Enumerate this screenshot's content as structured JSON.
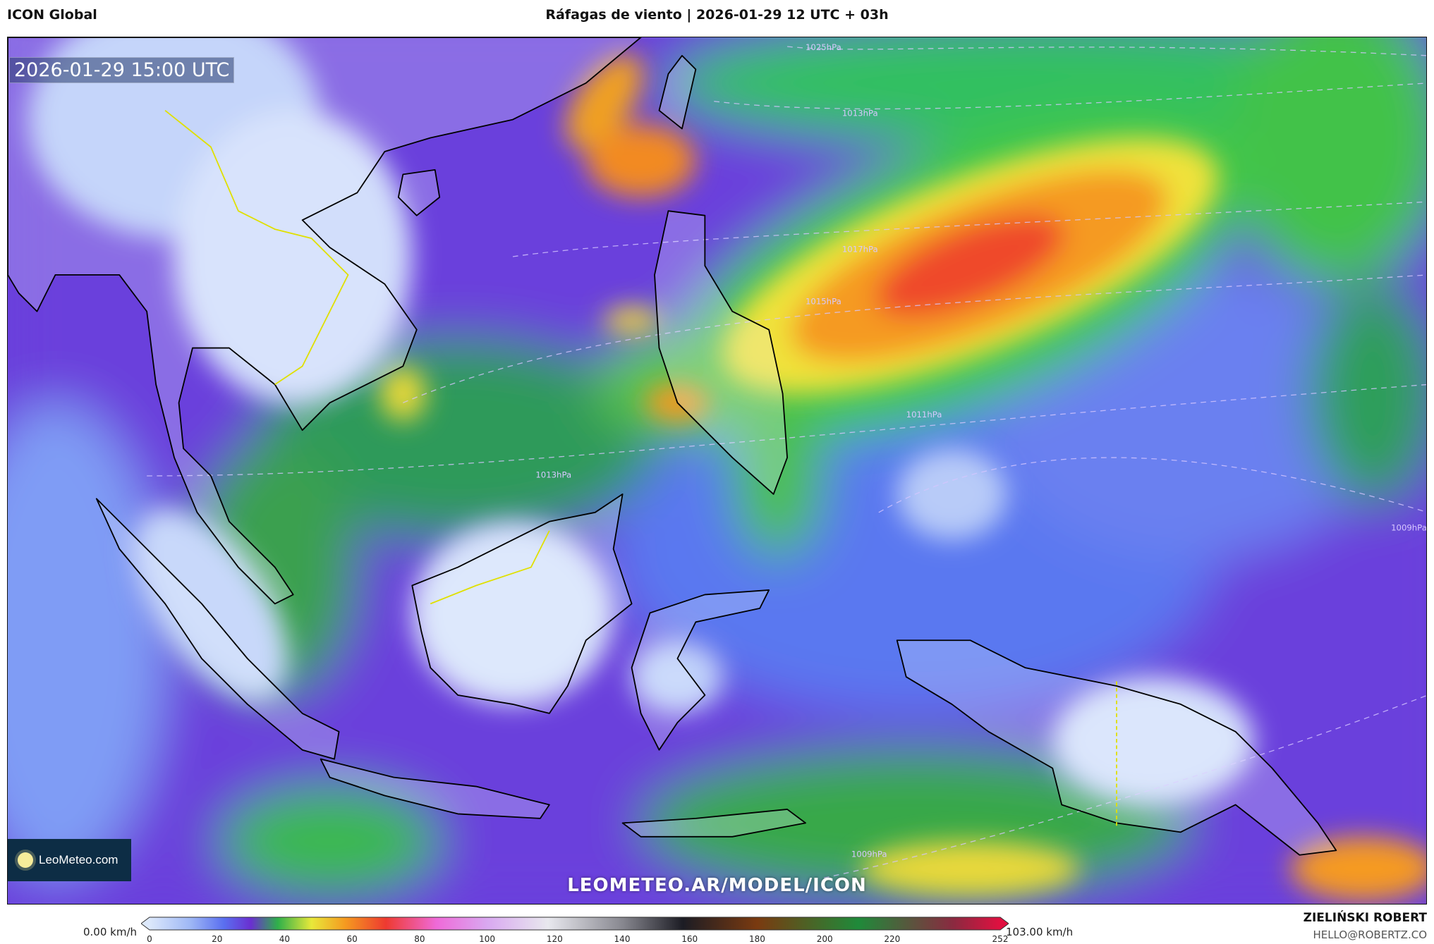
{
  "header": {
    "model": "ICON Global",
    "title": "Ráfagas de viento | 2026-01-29 12 UTC + 03h"
  },
  "map": {
    "valid_time": "2026-01-29 15:00 UTC",
    "watermark": "LEOMETEO.AR/MODEL/ICON",
    "logo_text": "LeoMeteo.com",
    "isobar_labels": [
      "1025hPa",
      "1013hPa",
      "1017hPa",
      "1015hPa",
      "1013hPa",
      "1011hPa",
      "1009hPa",
      "1009hPa"
    ]
  },
  "colorbar": {
    "min_label": "0.00 km/h",
    "max_label": "103.00 km/h",
    "unit": "km/h",
    "ticks": [
      0,
      20,
      40,
      60,
      80,
      100,
      120,
      140,
      160,
      180,
      200,
      220,
      252
    ],
    "range": [
      0,
      252
    ],
    "stops": [
      {
        "v": 0,
        "c": "#dce8fb"
      },
      {
        "v": 12,
        "c": "#9fb8f5"
      },
      {
        "v": 22,
        "c": "#5a6ff0"
      },
      {
        "v": 30,
        "c": "#6a2fd0"
      },
      {
        "v": 38,
        "c": "#2fb04a"
      },
      {
        "v": 48,
        "c": "#e8e83a"
      },
      {
        "v": 58,
        "c": "#f59a20"
      },
      {
        "v": 70,
        "c": "#ee3a30"
      },
      {
        "v": 85,
        "c": "#ef6ad8"
      },
      {
        "v": 100,
        "c": "#d9a8f0"
      },
      {
        "v": 118,
        "c": "#e8e8ee"
      },
      {
        "v": 140,
        "c": "#888890"
      },
      {
        "v": 158,
        "c": "#1c1c24"
      },
      {
        "v": 180,
        "c": "#7a3a10"
      },
      {
        "v": 210,
        "c": "#1f8a3a"
      },
      {
        "v": 238,
        "c": "#8a2a40"
      },
      {
        "v": 252,
        "c": "#e01040"
      }
    ]
  },
  "footer": {
    "author": "ZIELIŃSKI ROBERT",
    "email": "HELLO@ROBERTZ.CO"
  }
}
